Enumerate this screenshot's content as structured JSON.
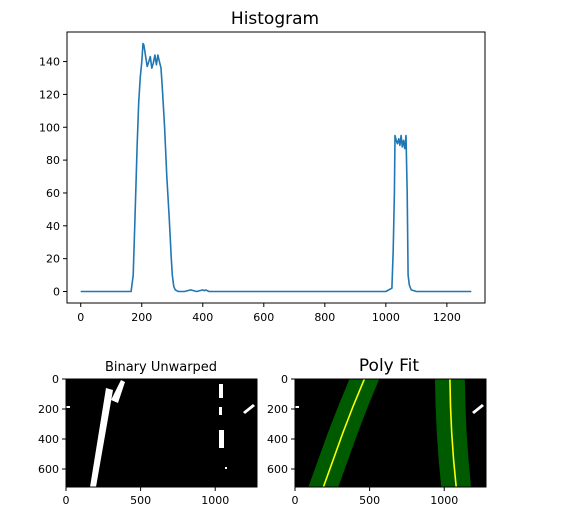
{
  "chart_data": [
    {
      "type": "line",
      "title": "Histogram",
      "xlim": [
        -45,
        1325
      ],
      "ylim": [
        -7,
        158
      ],
      "x_ticks": [
        0,
        200,
        400,
        600,
        800,
        1000,
        1200
      ],
      "y_ticks": [
        0,
        20,
        40,
        60,
        80,
        100,
        120,
        140
      ],
      "line_color": "#1f77b4",
      "series": [
        {
          "x": [
            0,
            165,
            172,
            178,
            185,
            190,
            195,
            200,
            204,
            207,
            212,
            218,
            223,
            228,
            233,
            238,
            243,
            248,
            253,
            258,
            263,
            268,
            275,
            282,
            290,
            297,
            300,
            305,
            310,
            320,
            340,
            360,
            380,
            400,
            405,
            410,
            420,
            500,
            700,
            900,
            1000,
            1020,
            1024,
            1028,
            1030,
            1034,
            1038,
            1042,
            1046,
            1050,
            1054,
            1058,
            1062,
            1066,
            1070,
            1073,
            1077,
            1083,
            1100,
            1200,
            1280
          ],
          "y": [
            0,
            0,
            10,
            45,
            90,
            115,
            130,
            140,
            151,
            150,
            144,
            137,
            140,
            143,
            136,
            139,
            144,
            138,
            144,
            140,
            136,
            122,
            100,
            70,
            45,
            20,
            10,
            3,
            1,
            0,
            0,
            1,
            0,
            1,
            0.5,
            1,
            0,
            0,
            0,
            0,
            0,
            2,
            25,
            60,
            95,
            92,
            90,
            93,
            89,
            95,
            88,
            92,
            87,
            95,
            60,
            10,
            4,
            1,
            0,
            0,
            0
          ]
        }
      ]
    },
    {
      "type": "image",
      "title": "Binary Unwarped",
      "xlim": [
        0,
        1280
      ],
      "ylim": [
        720,
        0
      ],
      "x_ticks": [
        0,
        500,
        1000
      ],
      "y_ticks": [
        0,
        200,
        400,
        600
      ]
    },
    {
      "type": "image",
      "title": "Poly Fit",
      "xlim": [
        0,
        1280
      ],
      "ylim": [
        720,
        0
      ],
      "x_ticks": [
        0,
        500,
        1000
      ],
      "y_ticks": [
        0,
        200,
        400,
        600
      ],
      "lane_band_color": "#005a00",
      "fit_line_color": "#ffff00",
      "left_fit": {
        "y": [
          0,
          180,
          360,
          540,
          720
        ],
        "x": [
          465,
          390,
          320,
          255,
          190
        ]
      },
      "right_fit": {
        "y": [
          0,
          180,
          360,
          540,
          720
        ],
        "x": [
          1038,
          1042,
          1050,
          1063,
          1080
        ]
      }
    }
  ]
}
